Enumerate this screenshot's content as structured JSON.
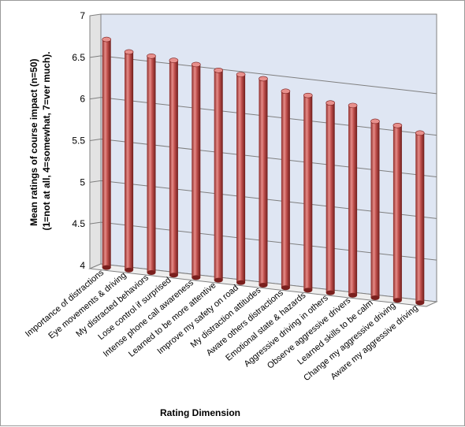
{
  "chart_data": {
    "type": "bar",
    "style": "3d-cylinder",
    "title": "",
    "xlabel": "Rating Dimension",
    "ylabel_line1": "Mean ratings of course impact (n=50)",
    "ylabel_line2": "(1=not at all, 4=somewhat, 7=ver much).",
    "ylim": [
      4,
      7
    ],
    "yticks": [
      "4",
      "4.5",
      "5",
      "5.5",
      "6",
      "6.5",
      "7"
    ],
    "grid": true,
    "legend": "none",
    "categories": [
      "Importance of distractions",
      "Eye movements  & driving",
      "My distracted behaviors",
      "Lose control if surprised",
      "Intense phone call  awareness",
      "Learned to be more attentive",
      "Improve my safety on road",
      "My distraction  attitudes",
      "Aware others distractions",
      "Emotional state & hazards",
      "Aggressive driving in others",
      "Observe aggressive drivers",
      "Learned skills  to be calm",
      "Change my aggressive driving",
      "Aware my aggressive driving"
    ],
    "values": [
      6.74,
      6.62,
      6.6,
      6.58,
      6.56,
      6.52,
      6.5,
      6.48,
      6.36,
      6.34,
      6.28,
      6.28,
      6.12,
      6.1,
      6.04
    ],
    "colors": {
      "bar": "#c0504d",
      "bar_dark": "#7a1f1d",
      "bar_light": "#e8908c",
      "back_wall": "#dfe6f3",
      "side_wall": "#e3e3e3",
      "floor": "#eeeeee",
      "grid": "#7f7f7f"
    }
  }
}
